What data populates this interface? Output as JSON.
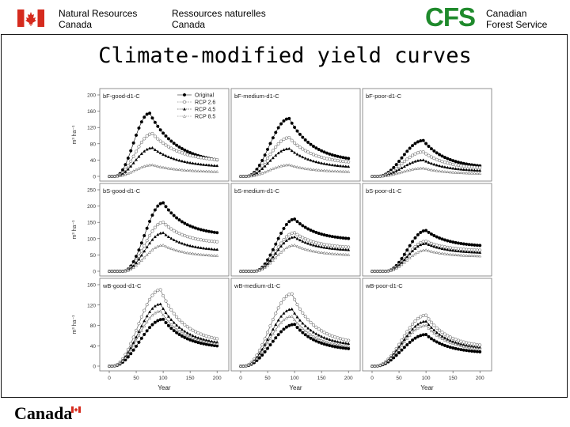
{
  "header": {
    "org_en_line1": "Natural Resources",
    "org_en_line2": "Canada",
    "org_fr_line1": "Ressources naturelles",
    "org_fr_line2": "Canada",
    "cfs_logo": "CFS",
    "cfs_line1": "Canadian",
    "cfs_line2": "Forest Service",
    "flag_icon": "canada-flag-icon"
  },
  "slide_title": "Climate-modified yield curves",
  "footer": {
    "wordmark": "Canada"
  },
  "colors": {
    "cfs_green": "#1f8a2c",
    "flag_red": "#d52b1e"
  },
  "chart_data": {
    "type": "line",
    "legend": {
      "placement": "top-right of first panel",
      "entries": [
        "Original",
        "RCP 2.6",
        "RCP 4.5",
        "RCP 8.5"
      ]
    },
    "shared_x": {
      "label": "Year",
      "ticks": [
        0,
        50,
        100,
        150,
        200
      ],
      "range": [
        0,
        210
      ]
    },
    "y_label": "m³ ha⁻¹",
    "rows": [
      {
        "ylim": [
          0,
          200
        ],
        "yticks": [
          0,
          40,
          80,
          120,
          160,
          200
        ]
      },
      {
        "ylim": [
          0,
          250
        ],
        "yticks": [
          0,
          50,
          100,
          150,
          200,
          250
        ]
      },
      {
        "ylim": [
          0,
          160
        ],
        "yticks": [
          0,
          40,
          80,
          120,
          160
        ]
      }
    ],
    "panels": [
      {
        "title": "bF-good-d1-C",
        "row": 0,
        "col": 0,
        "onset": 10,
        "series": [
          {
            "name": "Original",
            "peak": 155,
            "peak_year": 75,
            "end": 30
          },
          {
            "name": "RCP 2.6",
            "peak": 105,
            "peak_year": 80,
            "end": 35
          },
          {
            "name": "RCP 4.5",
            "peak": 70,
            "peak_year": 80,
            "end": 22
          },
          {
            "name": "RCP 8.5",
            "peak": 28,
            "peak_year": 80,
            "end": 10
          }
        ]
      },
      {
        "title": "bF-medium-d1-C",
        "row": 0,
        "col": 1,
        "onset": 10,
        "series": [
          {
            "name": "Original",
            "peak": 142,
            "peak_year": 90,
            "end": 35
          },
          {
            "name": "RCP 2.6",
            "peak": 95,
            "peak_year": 90,
            "end": 30
          },
          {
            "name": "RCP 4.5",
            "peak": 68,
            "peak_year": 90,
            "end": 20
          },
          {
            "name": "RCP 8.5",
            "peak": 28,
            "peak_year": 90,
            "end": 10
          }
        ]
      },
      {
        "title": "bF-poor-d1-C",
        "row": 0,
        "col": 2,
        "onset": 10,
        "series": [
          {
            "name": "Original",
            "peak": 88,
            "peak_year": 95,
            "end": 20
          },
          {
            "name": "RCP 2.6",
            "peak": 60,
            "peak_year": 95,
            "end": 18
          },
          {
            "name": "RCP 4.5",
            "peak": 40,
            "peak_year": 95,
            "end": 12
          },
          {
            "name": "RCP 8.5",
            "peak": 20,
            "peak_year": 95,
            "end": 6
          }
        ]
      },
      {
        "title": "bS-good-d1-C",
        "row": 1,
        "col": 0,
        "onset": 25,
        "series": [
          {
            "name": "Original",
            "peak": 210,
            "peak_year": 100,
            "end": 110
          },
          {
            "name": "RCP 2.6",
            "peak": 150,
            "peak_year": 100,
            "end": 85
          },
          {
            "name": "RCP 4.5",
            "peak": 118,
            "peak_year": 100,
            "end": 62
          },
          {
            "name": "RCP 8.5",
            "peak": 80,
            "peak_year": 100,
            "end": 45
          }
        ]
      },
      {
        "title": "bS-medium-d1-C",
        "row": 1,
        "col": 1,
        "onset": 25,
        "series": [
          {
            "name": "Original",
            "peak": 160,
            "peak_year": 100,
            "end": 95
          },
          {
            "name": "RCP 2.6",
            "peak": 118,
            "peak_year": 100,
            "end": 70
          },
          {
            "name": "RCP 4.5",
            "peak": 105,
            "peak_year": 100,
            "end": 62
          },
          {
            "name": "RCP 8.5",
            "peak": 80,
            "peak_year": 100,
            "end": 48
          }
        ]
      },
      {
        "title": "bS-poor-d1-C",
        "row": 1,
        "col": 2,
        "onset": 25,
        "series": [
          {
            "name": "Original",
            "peak": 125,
            "peak_year": 100,
            "end": 75
          },
          {
            "name": "RCP 2.6",
            "peak": 92,
            "peak_year": 100,
            "end": 62
          },
          {
            "name": "RCP 4.5",
            "peak": 85,
            "peak_year": 100,
            "end": 55
          },
          {
            "name": "RCP 8.5",
            "peak": 65,
            "peak_year": 100,
            "end": 45
          }
        ]
      },
      {
        "title": "wB-good-d1-C",
        "row": 2,
        "col": 0,
        "onset": 5,
        "series": [
          {
            "name": "Original",
            "peak": 92,
            "peak_year": 100,
            "end": 35
          },
          {
            "name": "RCP 2.6",
            "peak": 150,
            "peak_year": 95,
            "end": 45
          },
          {
            "name": "RCP 4.5",
            "peak": 122,
            "peak_year": 95,
            "end": 40
          },
          {
            "name": "RCP 8.5",
            "peak": 108,
            "peak_year": 95,
            "end": 38
          }
        ]
      },
      {
        "title": "wB-medium-d1-C",
        "row": 2,
        "col": 1,
        "onset": 5,
        "series": [
          {
            "name": "Original",
            "peak": 82,
            "peak_year": 100,
            "end": 30
          },
          {
            "name": "RCP 2.6",
            "peak": 142,
            "peak_year": 95,
            "end": 42
          },
          {
            "name": "RCP 4.5",
            "peak": 112,
            "peak_year": 95,
            "end": 38
          },
          {
            "name": "RCP 8.5",
            "peak": 98,
            "peak_year": 95,
            "end": 34
          }
        ]
      },
      {
        "title": "wB-poor-d1-C",
        "row": 2,
        "col": 2,
        "onset": 5,
        "series": [
          {
            "name": "Original",
            "peak": 62,
            "peak_year": 100,
            "end": 25
          },
          {
            "name": "RCP 2.6",
            "peak": 100,
            "peak_year": 100,
            "end": 36
          },
          {
            "name": "RCP 4.5",
            "peak": 88,
            "peak_year": 100,
            "end": 32
          },
          {
            "name": "RCP 8.5",
            "peak": 80,
            "peak_year": 100,
            "end": 30
          }
        ]
      }
    ]
  }
}
